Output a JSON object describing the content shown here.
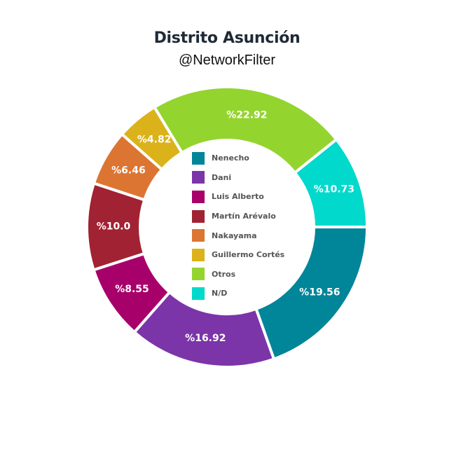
{
  "chart_data": {
    "type": "pie",
    "title": "Distrito Asunción",
    "subtitle": "@NetworkFilter",
    "legend_position": "center",
    "slices": [
      {
        "name": "Nenecho",
        "value": 19.56,
        "label": "%19.56",
        "color": "#008599"
      },
      {
        "name": "Dani",
        "value": 16.92,
        "label": "%16.92",
        "color": "#7b35a8"
      },
      {
        "name": "Luis Alberto",
        "value": 8.55,
        "label": "%8.55",
        "color": "#a8006a"
      },
      {
        "name": "Martín Arévalo",
        "value": 10.0,
        "label": "%10.0",
        "color": "#a12232"
      },
      {
        "name": "Nakayama",
        "value": 6.46,
        "label": "%6.46",
        "color": "#dd7532"
      },
      {
        "name": "Guillermo Cortés",
        "value": 4.82,
        "label": "%4.82",
        "color": "#dcb21b"
      },
      {
        "name": "Otros",
        "value": 22.92,
        "label": "%22.92",
        "color": "#94d42f"
      },
      {
        "name": "N/D",
        "value": 10.73,
        "label": "%10.73",
        "color": "#00d9cc"
      }
    ]
  }
}
